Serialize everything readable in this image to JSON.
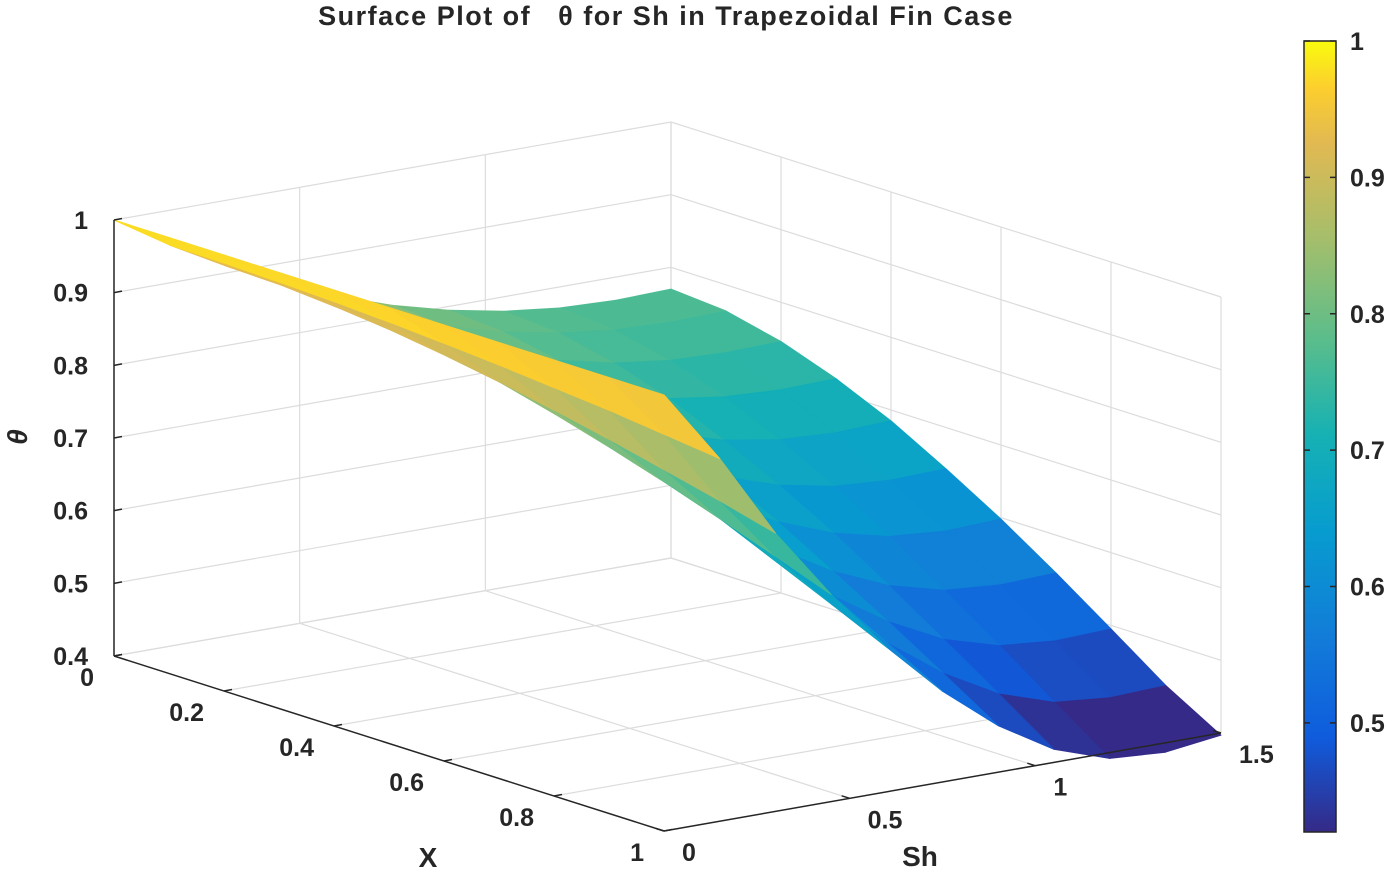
{
  "chart_data": {
    "type": "surface",
    "title": "Surface Plot of   θ for Sh in Trapezoidal Fin Case",
    "xlabel": "X",
    "ylabel": "Sh",
    "zlabel": "θ",
    "x_range": [
      0,
      1
    ],
    "y_range": [
      0,
      1.5
    ],
    "z_range": [
      0.4,
      1
    ],
    "x_ticks": [
      "0",
      "0.2",
      "0.4",
      "0.6",
      "0.8",
      "1"
    ],
    "y_ticks": [
      "0",
      "0.5",
      "1",
      "1.5"
    ],
    "z_ticks": [
      "0.4",
      "0.5",
      "0.6",
      "0.7",
      "0.8",
      "0.9",
      "1"
    ],
    "colorbar_ticks": [
      "0.5",
      "0.6",
      "0.7",
      "0.8",
      "0.9",
      "1"
    ],
    "colorbar_range": [
      0.42,
      1
    ],
    "colormap": "parula",
    "grid": true,
    "x": [
      0,
      0.1,
      0.2,
      0.3,
      0.4,
      0.5,
      0.6,
      0.7,
      0.8,
      0.9,
      1.0
    ],
    "y": [
      0,
      0.15,
      0.3,
      0.45,
      0.6,
      0.75,
      0.9,
      1.05,
      1.2,
      1.35,
      1.5
    ],
    "z": [
      [
        1.0,
        1.0,
        1.0,
        1.0,
        1.0,
        1.0,
        1.0,
        1.0,
        1.0,
        1.0,
        1.0
      ],
      [
        0.952,
        0.951,
        0.949,
        0.946,
        0.942,
        0.937,
        0.931,
        0.924,
        0.917,
        0.908,
        0.899
      ],
      [
        0.91,
        0.908,
        0.902,
        0.894,
        0.883,
        0.87,
        0.855,
        0.839,
        0.821,
        0.803,
        0.783
      ],
      [
        0.873,
        0.87,
        0.861,
        0.848,
        0.832,
        0.812,
        0.79,
        0.766,
        0.74,
        0.713,
        0.685
      ],
      [
        0.841,
        0.837,
        0.826,
        0.809,
        0.787,
        0.762,
        0.733,
        0.702,
        0.668,
        0.634,
        0.599
      ],
      [
        0.815,
        0.81,
        0.797,
        0.777,
        0.751,
        0.72,
        0.686,
        0.648,
        0.608,
        0.567,
        0.525
      ],
      [
        0.795,
        0.789,
        0.774,
        0.751,
        0.721,
        0.686,
        0.648,
        0.604,
        0.559,
        0.512,
        0.464
      ],
      [
        0.78,
        0.774,
        0.757,
        0.732,
        0.699,
        0.661,
        0.619,
        0.571,
        0.521,
        0.47,
        0.418
      ],
      [
        0.771,
        0.765,
        0.747,
        0.721,
        0.686,
        0.646,
        0.601,
        0.551,
        0.499,
        0.445,
        0.392
      ],
      [
        0.768,
        0.762,
        0.744,
        0.717,
        0.682,
        0.641,
        0.595,
        0.545,
        0.492,
        0.438,
        0.387
      ],
      [
        0.77,
        0.764,
        0.746,
        0.719,
        0.685,
        0.643,
        0.598,
        0.548,
        0.495,
        0.441,
        0.397
      ]
    ]
  }
}
